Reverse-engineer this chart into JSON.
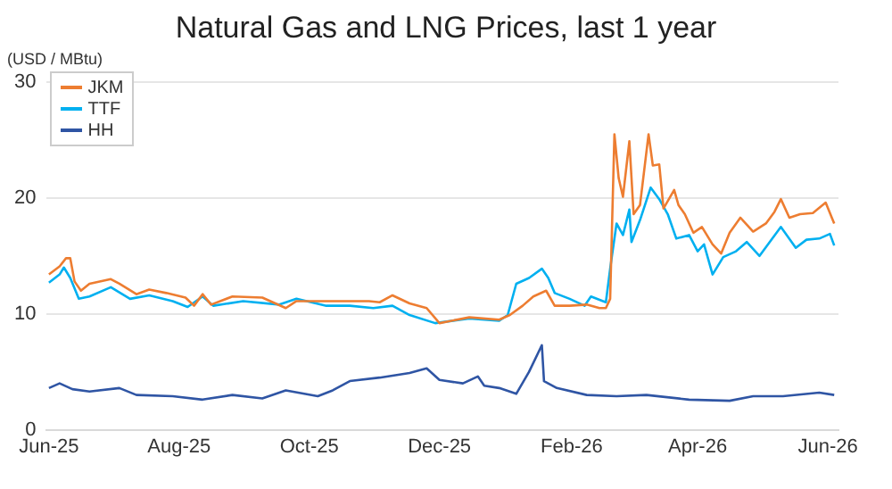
{
  "chart_data": {
    "type": "line",
    "title": "Natural Gas and LNG Prices, last 1 year",
    "ylabel": "(USD / MBtu)",
    "xlim": [
      "2025-05-31",
      "2026-06-06"
    ],
    "xticks": [
      {
        "value": "2025-06-01",
        "label": "Jun-25"
      },
      {
        "value": "2025-08-01",
        "label": "Aug-25"
      },
      {
        "value": "2025-10-01",
        "label": "Oct-25"
      },
      {
        "value": "2025-12-01",
        "label": "Dec-25"
      },
      {
        "value": "2026-02-01",
        "label": "Feb-26"
      },
      {
        "value": "2026-04-01",
        "label": "Apr-26"
      },
      {
        "value": "2026-06-01",
        "label": "Jun-26"
      }
    ],
    "ylim": [
      0,
      30
    ],
    "yticks": [
      0,
      10,
      20,
      30
    ],
    "grid": "y",
    "legend": "top left",
    "marker": "none",
    "line_style": "solid",
    "series": [
      {
        "name": "JKM",
        "color": "#ed7d31",
        "x": [
          "2025-06-01",
          "2025-06-06",
          "2025-06-09",
          "2025-06-11",
          "2025-06-13",
          "2025-06-16",
          "2025-06-20",
          "2025-06-30",
          "2025-07-04",
          "2025-07-12",
          "2025-07-18",
          "2025-07-26",
          "2025-08-04",
          "2025-08-08",
          "2025-08-12",
          "2025-08-16",
          "2025-08-26",
          "2025-09-09",
          "2025-09-20",
          "2025-09-25",
          "2025-10-12",
          "2025-10-29",
          "2025-11-03",
          "2025-11-09",
          "2025-11-17",
          "2025-11-25",
          "2025-12-01",
          "2025-12-15",
          "2025-12-29",
          "2026-01-03",
          "2026-01-09",
          "2026-01-14",
          "2026-01-20",
          "2026-01-24",
          "2026-01-31",
          "2026-02-08",
          "2026-02-14",
          "2026-02-17",
          "2026-02-19",
          "2026-02-21",
          "2026-02-23",
          "2026-02-25",
          "2026-02-28",
          "2026-03-02",
          "2026-03-05",
          "2026-03-09",
          "2026-03-11",
          "2026-03-14",
          "2026-03-16",
          "2026-03-21",
          "2026-03-23",
          "2026-03-26",
          "2026-03-30",
          "2026-04-03",
          "2026-04-08",
          "2026-04-12",
          "2026-04-16",
          "2026-04-21",
          "2026-04-27",
          "2026-05-03",
          "2026-05-07",
          "2026-05-10",
          "2026-05-14",
          "2026-05-19",
          "2026-05-25",
          "2026-05-31",
          "2026-06-04"
        ],
        "values": [
          13.4,
          14.1,
          14.8,
          14.8,
          12.8,
          12.0,
          12.6,
          13.0,
          12.6,
          11.7,
          12.1,
          11.8,
          11.4,
          10.7,
          11.7,
          10.8,
          11.5,
          11.4,
          10.5,
          11.1,
          11.1,
          11.1,
          11.0,
          11.6,
          10.9,
          10.5,
          9.2,
          9.7,
          9.5,
          9.9,
          10.7,
          11.5,
          12.0,
          10.7,
          10.7,
          10.8,
          10.5,
          10.5,
          11.3,
          25.5,
          21.7,
          20.1,
          24.9,
          18.6,
          19.4,
          25.5,
          22.8,
          22.9,
          19.1,
          20.7,
          19.4,
          18.6,
          17.0,
          17.5,
          16.0,
          15.2,
          17.0,
          18.3,
          17.1,
          17.8,
          18.8,
          19.9,
          18.3,
          18.6,
          18.7,
          19.6,
          17.8
        ]
      },
      {
        "name": "TTF",
        "color": "#00b0f0",
        "x": [
          "2025-06-01",
          "2025-06-06",
          "2025-06-08",
          "2025-06-11",
          "2025-06-15",
          "2025-06-20",
          "2025-06-30",
          "2025-07-09",
          "2025-07-18",
          "2025-07-29",
          "2025-08-05",
          "2025-08-12",
          "2025-08-17",
          "2025-08-31",
          "2025-09-17",
          "2025-09-25",
          "2025-10-09",
          "2025-10-20",
          "2025-10-31",
          "2025-11-09",
          "2025-11-17",
          "2025-11-29",
          "2025-12-15",
          "2025-12-29",
          "2026-01-02",
          "2026-01-06",
          "2026-01-12",
          "2026-01-18",
          "2026-01-21",
          "2026-01-24",
          "2026-01-31",
          "2026-02-07",
          "2026-02-10",
          "2026-02-17",
          "2026-02-19",
          "2026-02-22",
          "2026-02-25",
          "2026-02-28",
          "2026-03-01",
          "2026-03-05",
          "2026-03-10",
          "2026-03-14",
          "2026-03-18",
          "2026-03-22",
          "2026-03-28",
          "2026-04-01",
          "2026-04-04",
          "2026-04-08",
          "2026-04-13",
          "2026-04-19",
          "2026-04-24",
          "2026-04-30",
          "2026-05-06",
          "2026-05-10",
          "2026-05-17",
          "2026-05-22",
          "2026-05-28",
          "2026-06-02",
          "2026-06-04"
        ],
        "values": [
          12.7,
          13.4,
          14.0,
          13.1,
          11.3,
          11.5,
          12.3,
          11.3,
          11.6,
          11.1,
          10.6,
          11.5,
          10.7,
          11.1,
          10.8,
          11.3,
          10.7,
          10.7,
          10.5,
          10.7,
          9.9,
          9.2,
          9.6,
          9.4,
          9.9,
          12.6,
          13.1,
          13.9,
          13.1,
          11.8,
          11.3,
          10.7,
          11.5,
          11.0,
          13.9,
          17.8,
          16.8,
          19.0,
          16.2,
          18.1,
          20.9,
          19.9,
          18.6,
          16.5,
          16.8,
          15.4,
          16.0,
          13.4,
          14.9,
          15.4,
          16.2,
          15.0,
          16.5,
          17.5,
          15.7,
          16.4,
          16.5,
          16.9,
          15.9
        ]
      },
      {
        "name": "HH",
        "color": "#2f55a4",
        "x": [
          "2025-06-01",
          "2025-06-06",
          "2025-06-12",
          "2025-06-20",
          "2025-07-04",
          "2025-07-12",
          "2025-07-29",
          "2025-08-12",
          "2025-08-26",
          "2025-09-09",
          "2025-09-20",
          "2025-10-05",
          "2025-10-12",
          "2025-10-20",
          "2025-11-03",
          "2025-11-17",
          "2025-11-25",
          "2025-12-01",
          "2025-12-12",
          "2025-12-19",
          "2025-12-22",
          "2025-12-29",
          "2026-01-06",
          "2026-01-12",
          "2026-01-18",
          "2026-01-19",
          "2026-01-25",
          "2026-02-08",
          "2026-02-22",
          "2026-03-08",
          "2026-03-28",
          "2026-04-16",
          "2026-04-27",
          "2026-05-11",
          "2026-05-28",
          "2026-06-04"
        ],
        "values": [
          3.6,
          4.0,
          3.5,
          3.3,
          3.6,
          3.0,
          2.9,
          2.6,
          3.0,
          2.7,
          3.4,
          2.9,
          3.4,
          4.2,
          4.5,
          4.9,
          5.3,
          4.3,
          4.0,
          4.6,
          3.8,
          3.6,
          3.1,
          5.0,
          7.3,
          4.2,
          3.6,
          3.0,
          2.9,
          3.0,
          2.6,
          2.5,
          2.9,
          2.9,
          3.2,
          3.0
        ]
      }
    ]
  }
}
